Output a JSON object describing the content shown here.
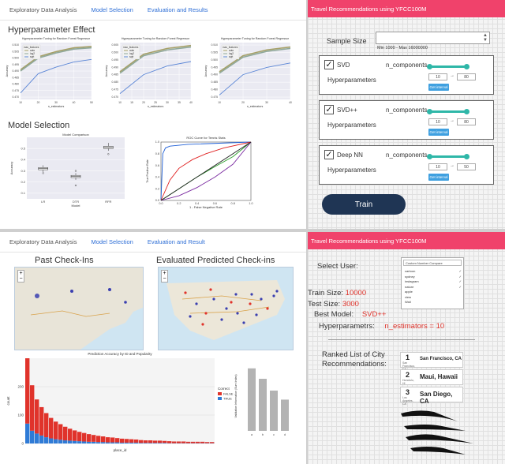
{
  "tl": {
    "tabs": [
      "Exploratory Data Analysis",
      "Model Selection",
      "Evaluation and Results"
    ],
    "active_tab": 1,
    "hyper_title": "Hyperparameter Effect",
    "model_title": "Model Selection",
    "hyper_charts": [
      {
        "title": "Hyperparameter Tuning for Random Forest Regressor",
        "xlabel": "n_estimators",
        "ylabel": "Accuracy",
        "legend_title": "max_features",
        "legend": [
          "auto",
          "log2",
          "sqrt"
        ],
        "yticks": [
          "0.510",
          "0.505",
          "0.500",
          "0.495",
          "0.490",
          "0.485",
          "0.480",
          "0.475",
          "0.470"
        ],
        "xticks": [
          "10",
          "20",
          "30",
          "40",
          "50"
        ]
      },
      {
        "title": "Hyperparameter Tuning for Random Forest Regressor",
        "xlabel": "n_estimators",
        "ylabel": "Accuracy",
        "legend_title": "max_features",
        "legend": [
          "auto",
          "log2",
          "sqrt"
        ],
        "yticks": [
          "0.505",
          "0.500",
          "0.495",
          "0.490",
          "0.485",
          "0.480",
          "0.475",
          "0.470"
        ],
        "xticks": [
          "10",
          "15",
          "20",
          "25",
          "30",
          "35",
          "40"
        ]
      },
      {
        "title": "Hyperparameter Tuning for Random Forest Regressor",
        "xlabel": "n_estimators",
        "ylabel": "Accuracy",
        "legend_title": "max_features",
        "legend": [
          "auto",
          "log2",
          "sqrt"
        ],
        "yticks": [
          "0.510",
          "0.505",
          "0.500",
          "0.495",
          "0.490",
          "0.485",
          "0.480",
          "0.475"
        ],
        "xticks": [
          "10",
          "20",
          "30",
          "40"
        ]
      }
    ],
    "box_chart": {
      "title": "Model Comparison",
      "xlabel": "Model",
      "ylabel": "Accuracy",
      "categories": [
        "LR",
        "DTR",
        "RFR"
      ],
      "yticks": [
        "0.5",
        "0.4",
        "0.3",
        "0.2",
        "0.1"
      ]
    },
    "roc_chart": {
      "title": "ROC Curve for Tennis Stats",
      "xlabel": "1 - False Negative Rate",
      "ylabel": "True Positive Rate",
      "ticks": [
        "0.0",
        "0.2",
        "0.4",
        "0.6",
        "0.8",
        "1.0"
      ]
    }
  },
  "chart_data": [
    {
      "type": "line",
      "title": "Hyperparameter Tuning for Random Forest Regressor",
      "xlabel": "n_estimators",
      "ylabel": "Accuracy",
      "x": [
        10,
        20,
        30,
        40,
        50
      ],
      "ylim": [
        0.468,
        0.512
      ],
      "series": [
        {
          "name": "auto",
          "values": [
            0.491,
            0.501,
            0.505,
            0.508,
            0.509
          ]
        },
        {
          "name": "log2",
          "values": [
            0.49,
            0.5,
            0.504,
            0.507,
            0.508
          ]
        },
        {
          "name": "sqrt",
          "values": [
            0.473,
            0.488,
            0.493,
            0.497,
            0.499
          ]
        }
      ]
    },
    {
      "type": "line",
      "title": "Hyperparameter Tuning for Random Forest Regressor",
      "xlabel": "n_estimators",
      "ylabel": "Accuracy",
      "x": [
        10,
        20,
        30,
        40
      ],
      "ylim": [
        0.468,
        0.507
      ],
      "series": [
        {
          "name": "auto",
          "values": [
            0.487,
            0.499,
            0.503,
            0.505
          ]
        },
        {
          "name": "log2",
          "values": [
            0.486,
            0.498,
            0.502,
            0.504
          ]
        },
        {
          "name": "sqrt",
          "values": [
            0.472,
            0.485,
            0.491,
            0.494
          ]
        }
      ]
    },
    {
      "type": "line",
      "title": "Hyperparameter Tuning for Random Forest Regressor",
      "xlabel": "n_estimators",
      "ylabel": "Accuracy",
      "x": [
        10,
        20,
        30,
        40
      ],
      "ylim": [
        0.473,
        0.512
      ],
      "series": [
        {
          "name": "auto",
          "values": [
            0.492,
            0.503,
            0.507,
            0.509
          ]
        },
        {
          "name": "log2",
          "values": [
            0.491,
            0.502,
            0.506,
            0.508
          ]
        },
        {
          "name": "sqrt",
          "values": [
            0.476,
            0.49,
            0.495,
            0.498
          ]
        }
      ]
    },
    {
      "type": "box",
      "title": "Model Comparison",
      "xlabel": "Model",
      "ylabel": "Accuracy",
      "categories": [
        "LR",
        "DTR",
        "RFR"
      ],
      "ylim": [
        0.05,
        0.6
      ],
      "boxes": [
        {
          "min": 0.29,
          "q1": 0.31,
          "median": 0.32,
          "q3": 0.33,
          "max": 0.35,
          "outliers": [
            0.28
          ]
        },
        {
          "min": 0.22,
          "q1": 0.24,
          "median": 0.25,
          "q3": 0.26,
          "max": 0.28,
          "outliers": [
            0.3,
            0.17
          ]
        },
        {
          "min": 0.48,
          "q1": 0.5,
          "median": 0.51,
          "q3": 0.52,
          "max": 0.55,
          "outliers": [
            0.45
          ]
        }
      ]
    },
    {
      "type": "line",
      "title": "ROC Curve for Tennis Stats",
      "xlabel": "1 - False Negative Rate",
      "ylabel": "True Positive Rate",
      "xlim": [
        0,
        1
      ],
      "ylim": [
        0,
        1
      ],
      "series": [
        {
          "color": "#1f5fd6",
          "x": [
            0,
            0.02,
            0.05,
            0.1,
            0.3,
            1
          ],
          "values": [
            0,
            0.8,
            0.9,
            0.93,
            0.96,
            1
          ]
        },
        {
          "color": "#e02020",
          "x": [
            0,
            0.1,
            0.2,
            0.35,
            0.5,
            0.7,
            1
          ],
          "values": [
            0,
            0.35,
            0.55,
            0.7,
            0.8,
            0.9,
            1
          ]
        },
        {
          "color": "#2a9d2a",
          "x": [
            0,
            0.2,
            0.4,
            0.6,
            0.8,
            1
          ],
          "values": [
            0,
            0.2,
            0.4,
            0.58,
            0.75,
            1
          ]
        },
        {
          "color": "#7a2aa0",
          "x": [
            0,
            0.2,
            0.4,
            0.6,
            0.8,
            1
          ],
          "values": [
            0,
            0.08,
            0.22,
            0.4,
            0.62,
            1
          ]
        },
        {
          "color": "#222222",
          "x": [
            0,
            1
          ],
          "values": [
            0,
            1
          ]
        }
      ]
    },
    {
      "type": "bar",
      "title": "Prediction Accuracy by ID and Popularity",
      "xlabel": "place_id",
      "ylabel": "count",
      "ylim": [
        0,
        300
      ],
      "legend_title": "Correct",
      "legend": [
        "FALSE",
        "TRUE"
      ],
      "values_false": [
        230,
        160,
        120,
        100,
        85,
        72,
        62,
        55,
        48,
        42,
        37,
        33,
        30,
        27,
        24,
        22,
        20,
        18,
        17,
        15,
        14,
        13,
        12,
        11,
        10,
        9,
        9,
        8,
        8,
        7,
        7,
        6,
        6,
        6,
        5,
        5,
        5,
        5,
        4,
        4
      ],
      "values_true": [
        70,
        45,
        35,
        28,
        22,
        18,
        15,
        13,
        11,
        10,
        9,
        8,
        7,
        6,
        6,
        5,
        5,
        4,
        4,
        4,
        3,
        3,
        3,
        3,
        2,
        2,
        2,
        2,
        2,
        2,
        1,
        1,
        1,
        1,
        1,
        1,
        1,
        1,
        1,
        1
      ]
    },
    {
      "type": "bar",
      "ylabel": "Validation Information (Sum Index)",
      "categories": [
        "a",
        "b",
        "c",
        "d"
      ],
      "values": [
        0.9,
        0.75,
        0.58,
        0.45
      ],
      "ylim": [
        0,
        1
      ]
    }
  ],
  "tr": {
    "header": "Travel Recommendations using YFCC100M",
    "sample_label": "Sample Size",
    "sample_hint": "Min 1000 - Max 16000000",
    "hyper_label": "Hyperparameters",
    "models": [
      {
        "name": "SVD",
        "param": "n_components",
        "min": "10",
        "max": "80",
        "btn": "Get interval"
      },
      {
        "name": "SVD++",
        "param": "n_components",
        "min": "10",
        "max": "80",
        "btn": "Get interval"
      },
      {
        "name": "Deep NN",
        "param": "n_components",
        "min": "10",
        "max": "50",
        "btn": "Get interval"
      }
    ],
    "train": "Train"
  },
  "bl": {
    "tabs": [
      "Exploratory Data Analysis",
      "Model Selection",
      "Evaluation and Result"
    ],
    "past_title": "Past Check-Ins",
    "pred_title": "Evaluated Predicted Check-ins",
    "bar_title": "Prediction Accuracy by ID and Popularity",
    "bar_xlabel": "place_id",
    "bar_ylabel": "count",
    "bar_yticks": [
      "200",
      "100",
      "0"
    ],
    "legend_title": "Correct",
    "legend": [
      "FALSE",
      "TRUE"
    ],
    "side_ylabel": "Validation Information (Sum Index)"
  },
  "br": {
    "header": "Travel Recommendations using YFCC100M",
    "select_label": "Select User:",
    "dropdown_title": "Custom Number Compare",
    "dropdown_items": [
      "cartoon",
      "sydney",
      "instagram",
      "nature",
      "apple",
      "view",
      "Wall"
    ],
    "train_size_label": "Train Size:",
    "train_size": "10000",
    "test_size_label": "Test Size:",
    "test_size": "3000",
    "best_model_label": "Best Model:",
    "best_model": "SVD++",
    "hyper_label": "Hyperparametrs:",
    "hyper_value": "n_estimators = 10",
    "ranked_label": "Ranked List of City Recommendations:",
    "cities": [
      {
        "rank": "1",
        "sub": "San Francisco, CA",
        "name": "San Francisco, CA"
      },
      {
        "rank": "2",
        "sub": "Honolulu, HI",
        "name": "Maui, Hawaii"
      },
      {
        "rank": "3",
        "sub": "Los Angeles, CA",
        "name": "San Diego, CA"
      }
    ]
  }
}
